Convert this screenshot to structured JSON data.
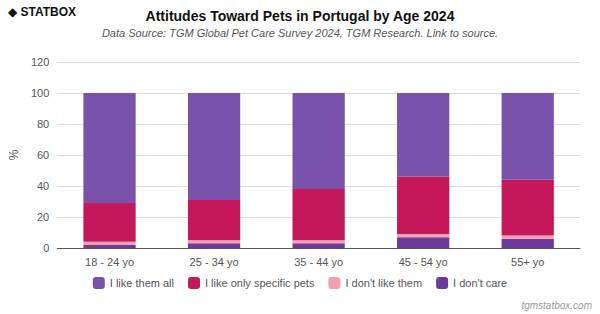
{
  "chart_data": {
    "type": "bar",
    "stacked": true,
    "title": "Attitudes Toward Pets in Portugal by Age 2024",
    "subtitle": "Data Source: TGM Global Pet Care Survey 2024, TGM Research. Link to source.",
    "ylabel": "%",
    "categories": [
      "18 - 24 yo",
      "25 - 34 yo",
      "35 - 44 yo",
      "45 - 54 yo",
      "55+ yo"
    ],
    "series": [
      {
        "name": "I don't care",
        "color": "#6B3A9A",
        "values": [
          2,
          3,
          3,
          7,
          6
        ]
      },
      {
        "name": "I don't like them",
        "color": "#F4A0B0",
        "values": [
          2,
          2,
          2,
          2,
          2
        ]
      },
      {
        "name": "I like only specific pets",
        "color": "#C4185A",
        "values": [
          25,
          26,
          33,
          37,
          36
        ]
      },
      {
        "name": "I like them all",
        "color": "#7B52AB",
        "values": [
          71,
          69,
          62,
          54,
          56
        ]
      }
    ],
    "ylim": [
      0,
      120
    ],
    "yticks": [
      0,
      20,
      40,
      60,
      80,
      100,
      120
    ],
    "grid": true,
    "legend": "bottom",
    "annotations": [
      "◆ STATBOX",
      "tgmstatbox.com"
    ]
  }
}
